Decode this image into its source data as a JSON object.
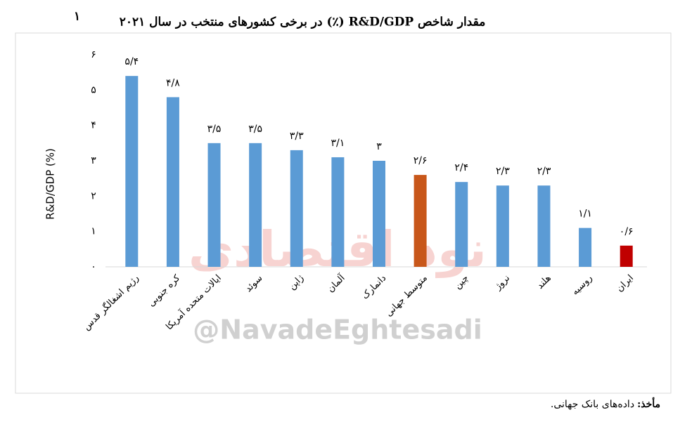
{
  "chart_data": {
    "type": "bar",
    "title": "مقدار شاخص R&D/GDP (٪) در برخی کشورهای منتخب در سال ۲۰۲۱",
    "title_footnote": "۱",
    "y_label": "R&D/GDP (%)",
    "categories": [
      "رژیم اشغالگر قدس",
      "کره جنوبی",
      "ایالات متحده آمریکا",
      "سوئد",
      "ژاپن",
      "آلمان",
      "دانمارک",
      "متوسط جهانی",
      "چین",
      "نروژ",
      "هلند",
      "روسیه",
      "ایران"
    ],
    "values": [
      5.4,
      4.8,
      3.5,
      3.5,
      3.3,
      3.1,
      3,
      2.6,
      2.4,
      2.3,
      2.3,
      1.1,
      0.6
    ],
    "value_labels": [
      "۵/۴",
      "۴/۸",
      "۳/۵",
      "۳/۵",
      "۳/۳",
      "۳/۱",
      "۳",
      "۲/۶",
      "۲/۴",
      "۲/۳",
      "۲/۳",
      "۱/۱",
      "۰/۶"
    ],
    "colors": [
      "#5b9bd5",
      "#5b9bd5",
      "#5b9bd5",
      "#5b9bd5",
      "#5b9bd5",
      "#5b9bd5",
      "#5b9bd5",
      "#c8571a",
      "#5b9bd5",
      "#5b9bd5",
      "#5b9bd5",
      "#5b9bd5",
      "#c00000"
    ],
    "ylim": [
      0,
      6
    ],
    "yticks": [
      {
        "value": 0,
        "label": "۰"
      },
      {
        "value": 1,
        "label": "۱"
      },
      {
        "value": 2,
        "label": "۲"
      },
      {
        "value": 3,
        "label": "۳"
      },
      {
        "value": 4,
        "label": "۴"
      },
      {
        "value": 5,
        "label": "۵"
      },
      {
        "value": 6,
        "label": "۶"
      }
    ],
    "grid": false,
    "watermark": "@NavadeEghtesadi",
    "watermark_logo": "نود اقتصادی",
    "source_label": "مأخذ:",
    "source": "داده‌های بانک جهانی."
  }
}
